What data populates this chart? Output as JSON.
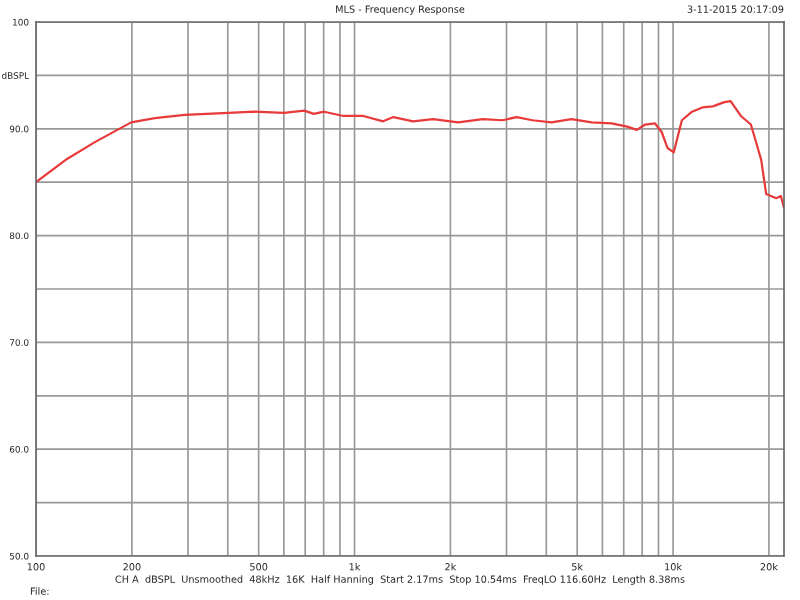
{
  "chart_data": {
    "type": "line",
    "title": "MLS - Frequency Response",
    "x": [
      100,
      124,
      154,
      199,
      236,
      293,
      402,
      484,
      601,
      695,
      745,
      802,
      924,
      1066,
      1229,
      1325,
      1527,
      1764,
      2115,
      2526,
      2914,
      3228,
      3622,
      4150,
      4797,
      5550,
      6415,
      7180,
      7700,
      8170,
      8780,
      9210,
      9610,
      10050,
      10660,
      11470,
      12360,
      13330,
      14490,
      15160,
      16330,
      17550,
      18910,
      19600,
      21090,
      21800,
      22300
    ],
    "series": [
      {
        "color": "#e83a3a",
        "values": [
          85.0,
          87.1,
          88.8,
          90.6,
          91.0,
          91.3,
          91.5,
          91.6,
          91.5,
          91.7,
          91.4,
          91.6,
          91.2,
          91.2,
          90.7,
          91.1,
          90.7,
          90.9,
          90.6,
          90.9,
          90.8,
          91.1,
          90.8,
          90.6,
          90.9,
          90.6,
          90.5,
          90.2,
          89.9,
          90.4,
          90.5,
          89.7,
          88.2,
          87.8,
          90.8,
          91.6,
          92.0,
          92.1,
          92.5,
          92.6,
          91.2,
          90.4,
          87.1,
          83.9,
          83.5,
          83.7,
          82.6
        ]
      }
    ],
    "log": "x",
    "xlim": [
      100,
      22300
    ],
    "xticks": [
      100,
      200,
      {
        "value": 300,
        "label": null
      },
      {
        "value": 400,
        "label": null
      },
      500,
      {
        "value": 600,
        "label": null
      },
      {
        "value": 700,
        "label": null
      },
      {
        "value": 800,
        "label": null
      },
      {
        "value": 900,
        "label": null
      },
      {
        "value": 1000,
        "label": "1k"
      },
      {
        "value": 2000,
        "label": "2k"
      },
      {
        "value": 3000,
        "label": null
      },
      {
        "value": 4000,
        "label": null
      },
      {
        "value": 5000,
        "label": "5k"
      },
      {
        "value": 6000,
        "label": null
      },
      {
        "value": 7000,
        "label": null
      },
      {
        "value": 8000,
        "label": null
      },
      {
        "value": 9000,
        "label": null
      },
      {
        "value": 10000,
        "label": "10k"
      },
      {
        "value": 20000,
        "label": "20k"
      }
    ],
    "ylim": [
      50,
      100
    ],
    "yticks": [
      {
        "value": 50,
        "label": "50.0"
      },
      {
        "value": 55,
        "label": null
      },
      {
        "value": 60,
        "label": "60.0"
      },
      {
        "value": 65,
        "label": null
      },
      {
        "value": 70,
        "label": "70.0"
      },
      {
        "value": 75,
        "label": null
      },
      {
        "value": 80,
        "label": "80.0"
      },
      {
        "value": 85,
        "label": null
      },
      {
        "value": 90,
        "label": "90.0"
      },
      {
        "value": 95,
        "label": "dBSPL"
      },
      {
        "value": 100,
        "label": "100"
      }
    ],
    "grid": true,
    "legend": false,
    "annotations": [
      "3-11-2015 20:17:09",
      "CH A  dBSPL  Unsmoothed  48kHz  16K  Half Hanning  Start 2.17ms  Stop 10.54ms  FreqLO 116.60Hz  Length 8.38ms",
      "File:"
    ]
  }
}
